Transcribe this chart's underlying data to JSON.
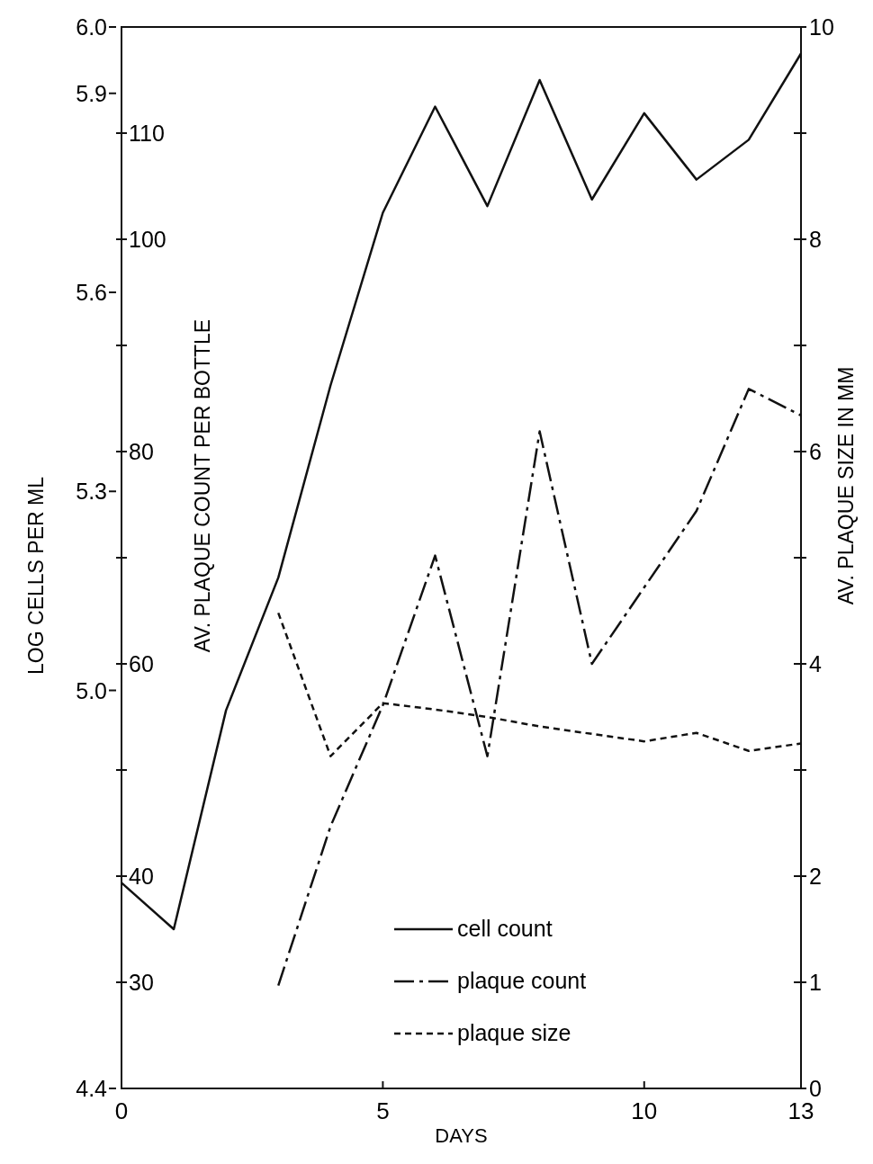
{
  "chart_data": {
    "type": "line",
    "xlabel": "DAYS",
    "ylabel": "LOG CELLS PER ML",
    "y3label": "AV. PLAQUE COUNT PER BOTTLE",
    "y2label": "AV. PLAQUE SIZE IN MM",
    "x": [
      0,
      1,
      2,
      3,
      4,
      5,
      6,
      7,
      8,
      9,
      10,
      11,
      12,
      13
    ],
    "xlim": [
      0,
      13
    ],
    "xticks": [
      0,
      5,
      10,
      13
    ],
    "ylim": [
      4.4,
      6.0
    ],
    "yticks": [
      {
        "value": 4.4,
        "label": "4.4"
      },
      {
        "value": 5.0,
        "label": "5.0"
      },
      {
        "value": 5.3,
        "label": "5.3"
      },
      {
        "value": 5.6,
        "label": "5.6"
      },
      {
        "value": 5.9,
        "label": "5.9"
      },
      {
        "value": 6.0,
        "label": "6.0"
      }
    ],
    "y3lim": [
      20,
      120
    ],
    "y3ticks": [
      30,
      40,
      {
        "value": 50,
        "label": null
      },
      60,
      {
        "value": 70,
        "label": null
      },
      80,
      {
        "value": 90,
        "label": null
      },
      100,
      110
    ],
    "y2lim": [
      0,
      10
    ],
    "y2ticks": [
      0,
      1,
      2,
      {
        "value": 3,
        "label": null
      },
      4,
      {
        "value": 5,
        "label": null
      },
      6,
      {
        "value": 7,
        "label": null
      },
      8,
      {
        "value": 9,
        "label": null
      },
      10
    ],
    "series": [
      {
        "name": "cell count",
        "color": "#111111",
        "line_style": "solid",
        "axis": "y",
        "values": [
          4.71,
          4.64,
          4.97,
          5.17,
          5.46,
          5.72,
          5.88,
          5.73,
          5.92,
          5.74,
          5.87,
          5.77,
          5.83,
          5.96
        ]
      },
      {
        "name": "plaque count",
        "color": "#111111",
        "line_style": "dashed",
        "axis": "y3",
        "values": [
          null,
          null,
          null,
          29.7,
          44.7,
          56.1,
          70.2,
          51.3,
          81.9,
          60,
          67.2,
          74.4,
          85.9,
          83.4
        ]
      },
      {
        "name": "plaque size",
        "color": "#111111",
        "line_style": "dotted",
        "axis": "y2",
        "values": [
          null,
          null,
          null,
          4.48,
          3.13,
          3.63,
          3.57,
          3.5,
          3.41,
          3.34,
          3.27,
          3.35,
          3.18,
          3.25
        ]
      }
    ],
    "legend": "bottom right",
    "marker": "none",
    "grid": false
  }
}
